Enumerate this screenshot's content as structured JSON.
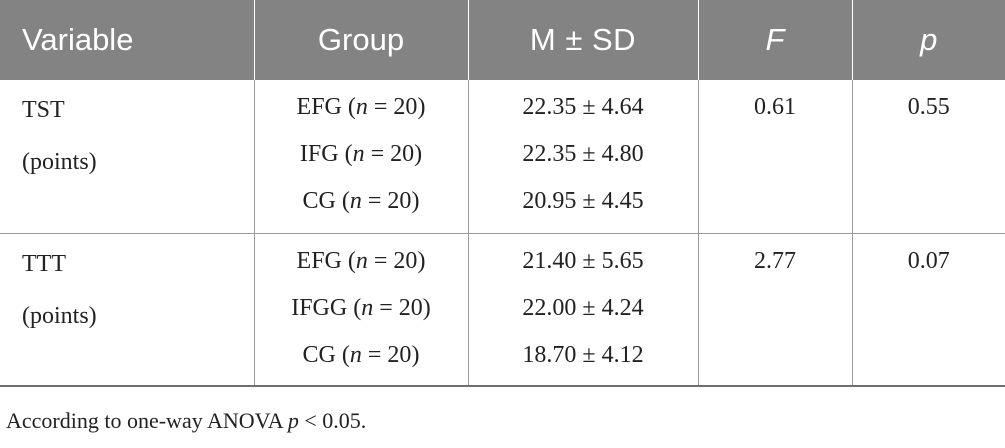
{
  "table": {
    "headers": {
      "variable": "Variable",
      "group": "Group",
      "msd": "M ± SD",
      "f": "F",
      "p": "p"
    },
    "rows": [
      {
        "variable_line1": "TST",
        "variable_line2": "(points)",
        "groups": [
          {
            "name": "EFG",
            "n_label": "n",
            "n_value": "= 20",
            "msd": "22.35 ± 4.64"
          },
          {
            "name": "IFG",
            "n_label": "n",
            "n_value": "= 20",
            "msd": "22.35 ± 4.80"
          },
          {
            "name": "CG",
            "n_label": "n",
            "n_value": "= 20",
            "msd": "20.95 ± 4.45"
          }
        ],
        "f": "0.61",
        "p": "0.55"
      },
      {
        "variable_line1": "TTT",
        "variable_line2": "(points)",
        "groups": [
          {
            "name": "EFG",
            "n_label": "n",
            "n_value": "= 20",
            "msd": "21.40 ± 5.65"
          },
          {
            "name": "IFGG",
            "n_label": "n",
            "n_value": "= 20",
            "msd": "22.00 ± 4.24"
          },
          {
            "name": "CG",
            "n_label": "n",
            "n_value": "= 20",
            "msd": "18.70 ± 4.12"
          }
        ],
        "f": "2.77",
        "p": "0.07"
      }
    ]
  },
  "footnote": {
    "prefix": "According to one-way ANOVA ",
    "p_symbol": "p",
    "suffix": " < 0.05."
  }
}
